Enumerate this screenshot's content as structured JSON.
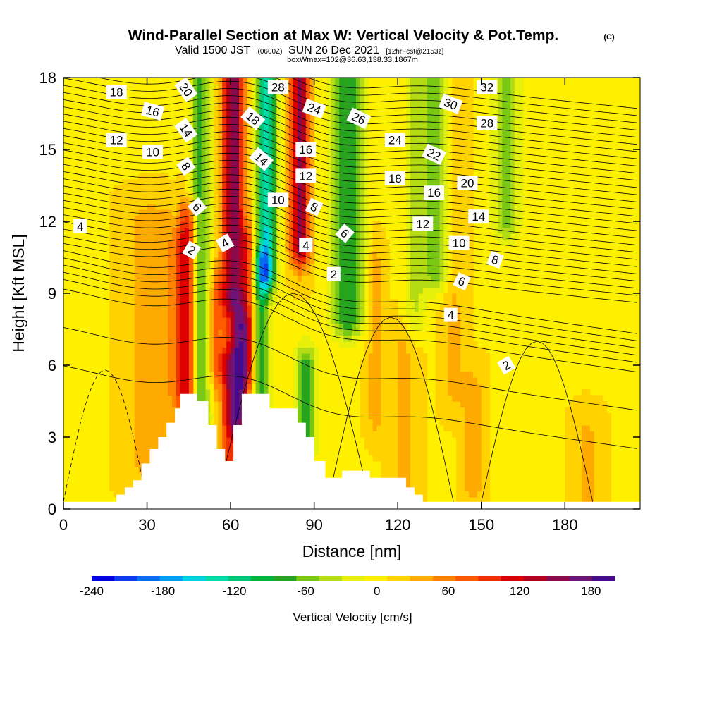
{
  "chart_data": {
    "type": "heatmap",
    "title": "Wind-Parallel Section at Max W: Vertical Velocity & Pot.Temp.",
    "title_mark": "(C)",
    "subtitle": {
      "valid": "Valid 1500 JST",
      "zulu": "(0600Z)",
      "date": "SUN 26 Dec 2021",
      "fcst": "[12hrFcst@2153z]"
    },
    "box_info": "boxWmax=102@36.63,138.33,1867m",
    "xlabel": "Distance [nm]",
    "ylabel": "Height [Kft MSL]",
    "xlim": [
      0,
      207
    ],
    "ylim": [
      0,
      18
    ],
    "x_ticks": [
      "0",
      "30",
      "60",
      "90",
      "120",
      "150",
      "180"
    ],
    "y_ticks": [
      "0",
      "3",
      "6",
      "9",
      "12",
      "15",
      "18"
    ],
    "colorbar": {
      "label": "Vertical Velocity [cm/s]",
      "tick_labels": [
        "-240",
        "-180",
        "-120",
        "-60",
        "0",
        "60",
        "120",
        "180"
      ],
      "range": [
        -240,
        200
      ],
      "colors": [
        "#0000e6",
        "#0a3cf0",
        "#0a6ef5",
        "#00a0f5",
        "#00d2e6",
        "#00dcaa",
        "#00c878",
        "#00b43c",
        "#28a51e",
        "#78c814",
        "#b4dc14",
        "#e6f00a",
        "#fff000",
        "#ffd200",
        "#ffaa00",
        "#ff8200",
        "#ff5a00",
        "#f03000",
        "#dc0000",
        "#b4001e",
        "#8c0a4b",
        "#6e1478",
        "#460a8c"
      ]
    },
    "terrain_profile": [
      [
        0,
        0.3
      ],
      [
        19,
        0.3
      ],
      [
        19,
        0.6
      ],
      [
        22,
        0.6
      ],
      [
        22,
        0.9
      ],
      [
        25,
        0.9
      ],
      [
        25,
        1.2
      ],
      [
        28,
        1.2
      ],
      [
        28,
        1.9
      ],
      [
        31,
        1.9
      ],
      [
        31,
        2.5
      ],
      [
        34,
        2.5
      ],
      [
        34,
        3.0
      ],
      [
        37,
        3.0
      ],
      [
        37,
        3.6
      ],
      [
        40,
        3.6
      ],
      [
        40,
        4.2
      ],
      [
        42,
        4.2
      ],
      [
        42,
        4.8
      ],
      [
        48,
        4.8
      ],
      [
        48,
        4.5
      ],
      [
        52,
        4.5
      ],
      [
        52,
        3.5
      ],
      [
        55,
        3.5
      ],
      [
        55,
        2.5
      ],
      [
        58,
        2.5
      ],
      [
        58,
        2.0
      ],
      [
        61,
        2.0
      ],
      [
        61,
        3.5
      ],
      [
        64,
        3.5
      ],
      [
        64,
        4.8
      ],
      [
        74,
        4.8
      ],
      [
        74,
        4.2
      ],
      [
        84,
        4.2
      ],
      [
        84,
        3.6
      ],
      [
        87,
        3.6
      ],
      [
        87,
        3.0
      ],
      [
        90,
        3.0
      ],
      [
        90,
        2.0
      ],
      [
        94,
        2.0
      ],
      [
        94,
        1.3
      ],
      [
        100,
        1.3
      ],
      [
        100,
        1.6
      ],
      [
        110,
        1.6
      ],
      [
        110,
        1.3
      ],
      [
        123,
        1.3
      ],
      [
        123,
        0.9
      ],
      [
        126,
        0.9
      ],
      [
        126,
        0.6
      ],
      [
        129,
        0.6
      ],
      [
        129,
        0.3
      ],
      [
        207,
        0.3
      ]
    ],
    "w_field": {
      "background": 8,
      "features": [
        {
          "x": 32,
          "half_width": 10,
          "z0": 2,
          "z1": 12,
          "w": 30
        },
        {
          "x": 42,
          "half_width": 4,
          "z0": 5,
          "z1": 11,
          "w": 50
        },
        {
          "x": 45,
          "half_width": 3,
          "z0": 4.5,
          "z1": 12,
          "w": 90
        },
        {
          "x": 49,
          "half_width": 3.5,
          "z0": 4,
          "z1": 18,
          "w": -85
        },
        {
          "x": 55,
          "half_width": 3,
          "z0": 6,
          "z1": 9,
          "w": 60
        },
        {
          "x": 60,
          "half_width": 4,
          "z0": 2,
          "z1": 6,
          "w": 80
        },
        {
          "x": 61,
          "half_width": 4,
          "z0": 9,
          "z1": 18,
          "w": 150
        },
        {
          "x": 63,
          "half_width": 4,
          "z0": 4,
          "z1": 7.5,
          "w": 130
        },
        {
          "x": 66,
          "half_width": 3,
          "z0": 6,
          "z1": 11,
          "w": 60
        },
        {
          "x": 71,
          "half_width": 3,
          "z0": 5,
          "z1": 10,
          "w": -90
        },
        {
          "x": 73,
          "half_width": 3.5,
          "z0": 10,
          "z1": 18,
          "w": -150
        },
        {
          "x": 85,
          "half_width": 3.5,
          "z0": 11,
          "z1": 18,
          "w": 140
        },
        {
          "x": 87,
          "half_width": 4,
          "z0": 3,
          "z1": 6,
          "w": -80
        },
        {
          "x": 102,
          "half_width": 6,
          "z0": 8,
          "z1": 18,
          "w": -90
        },
        {
          "x": 112,
          "half_width": 3,
          "z0": 4,
          "z1": 10,
          "w": 30
        },
        {
          "x": 122,
          "half_width": 5,
          "z0": 1,
          "z1": 7,
          "w": 25
        },
        {
          "x": 126,
          "half_width": 4,
          "z0": 8,
          "z1": 18,
          "w": -40
        },
        {
          "x": 134,
          "half_width": 5,
          "z0": 10,
          "z1": 18,
          "w": -70
        },
        {
          "x": 140,
          "half_width": 4,
          "z0": 5,
          "z1": 18,
          "w": 25
        },
        {
          "x": 147,
          "half_width": 4,
          "z0": 1,
          "z1": 5,
          "w": 30
        },
        {
          "x": 159,
          "half_width": 5,
          "z0": 12,
          "z1": 18,
          "w": -60
        },
        {
          "x": 188,
          "half_width": 5,
          "z0": 0.5,
          "z1": 3,
          "w": 25
        }
      ]
    },
    "theta_contours": {
      "interval": 1,
      "labeled": [
        {
          "text": "18",
          "x": 19,
          "z": 17.4,
          "angle": 0
        },
        {
          "text": "16",
          "x": 32,
          "z": 16.6,
          "angle": 15
        },
        {
          "text": "12",
          "x": 19,
          "z": 15.4,
          "angle": 0
        },
        {
          "text": "10",
          "x": 32,
          "z": 14.9,
          "angle": 0
        },
        {
          "text": "4",
          "x": 6,
          "z": 11.8,
          "angle": 0
        },
        {
          "text": "20",
          "x": 44,
          "z": 17.5,
          "angle": 55
        },
        {
          "text": "14",
          "x": 44,
          "z": 15.8,
          "angle": 55
        },
        {
          "text": "8",
          "x": 44,
          "z": 14.3,
          "angle": 55
        },
        {
          "text": "6",
          "x": 48,
          "z": 12.6,
          "angle": 50
        },
        {
          "text": "2",
          "x": 46,
          "z": 10.8,
          "angle": 30
        },
        {
          "text": "4",
          "x": 58,
          "z": 11.1,
          "angle": -30
        },
        {
          "text": "18",
          "x": 68,
          "z": 16.3,
          "angle": 40
        },
        {
          "text": "14",
          "x": 71,
          "z": 14.6,
          "angle": 40
        },
        {
          "text": "10",
          "x": 77,
          "z": 12.9,
          "angle": 0
        },
        {
          "text": "28",
          "x": 77,
          "z": 17.6,
          "angle": 0
        },
        {
          "text": "24",
          "x": 90,
          "z": 16.7,
          "angle": 20
        },
        {
          "text": "16",
          "x": 87,
          "z": 15.0,
          "angle": 0
        },
        {
          "text": "12",
          "x": 87,
          "z": 13.9,
          "angle": 0
        },
        {
          "text": "8",
          "x": 90,
          "z": 12.6,
          "angle": 25
        },
        {
          "text": "4",
          "x": 87,
          "z": 11.0,
          "angle": 0
        },
        {
          "text": "6",
          "x": 101,
          "z": 11.5,
          "angle": 40
        },
        {
          "text": "2",
          "x": 97,
          "z": 9.8,
          "angle": 0
        },
        {
          "text": "26",
          "x": 106,
          "z": 16.3,
          "angle": 25
        },
        {
          "text": "24",
          "x": 119,
          "z": 15.4,
          "angle": 0
        },
        {
          "text": "18",
          "x": 119,
          "z": 13.8,
          "angle": 0
        },
        {
          "text": "22",
          "x": 133,
          "z": 14.8,
          "angle": 25
        },
        {
          "text": "16",
          "x": 133,
          "z": 13.2,
          "angle": 0
        },
        {
          "text": "12",
          "x": 129,
          "z": 11.9,
          "angle": 0
        },
        {
          "text": "30",
          "x": 139,
          "z": 16.9,
          "angle": 20
        },
        {
          "text": "20",
          "x": 145,
          "z": 13.6,
          "angle": 0
        },
        {
          "text": "14",
          "x": 149,
          "z": 12.2,
          "angle": 0
        },
        {
          "text": "10",
          "x": 142,
          "z": 11.1,
          "angle": 0
        },
        {
          "text": "32",
          "x": 152,
          "z": 17.6,
          "angle": 0
        },
        {
          "text": "28",
          "x": 152,
          "z": 16.1,
          "angle": 0
        },
        {
          "text": "8",
          "x": 155,
          "z": 10.4,
          "angle": 20
        },
        {
          "text": "6",
          "x": 143,
          "z": 9.5,
          "angle": 25
        },
        {
          "text": "4",
          "x": 139,
          "z": 8.1,
          "angle": 0
        },
        {
          "text": "2",
          "x": 159,
          "z": 6.0,
          "angle": -30
        }
      ]
    }
  }
}
